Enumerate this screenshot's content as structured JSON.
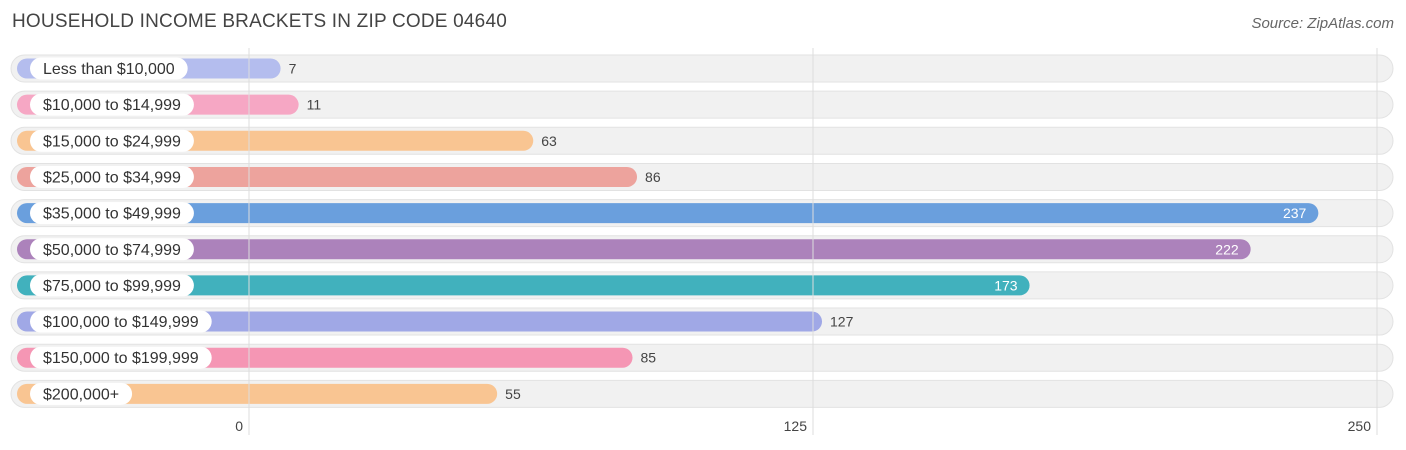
{
  "title": "HOUSEHOLD INCOME BRACKETS IN ZIP CODE 04640",
  "source": "Source: ZipAtlas.com",
  "chart_data": {
    "type": "bar",
    "orientation": "horizontal",
    "title": "HOUSEHOLD INCOME BRACKETS IN ZIP CODE 04640",
    "categories": [
      "Less than $10,000",
      "$10,000 to $14,999",
      "$15,000 to $24,999",
      "$25,000 to $34,999",
      "$35,000 to $49,999",
      "$50,000 to $74,999",
      "$75,000 to $99,999",
      "$100,000 to $149,999",
      "$150,000 to $199,999",
      "$200,000+"
    ],
    "values": [
      7,
      11,
      63,
      86,
      237,
      222,
      173,
      127,
      85,
      55
    ],
    "value_labels": [
      "7",
      "11",
      "63",
      "86",
      "237",
      "222",
      "173",
      "127",
      "85",
      "55"
    ],
    "colors": [
      "#b4bdee",
      "#f6a7c4",
      "#f9c592",
      "#eda39d",
      "#6a9fdd",
      "#ac82bb",
      "#41b1bd",
      "#a0a8e6",
      "#f596b4",
      "#f9c592"
    ],
    "xlim": [
      0,
      250
    ],
    "xticks": [
      0,
      125,
      250
    ],
    "xtick_labels": [
      "0",
      "125",
      "250"
    ],
    "grid": true,
    "legend": "none"
  }
}
